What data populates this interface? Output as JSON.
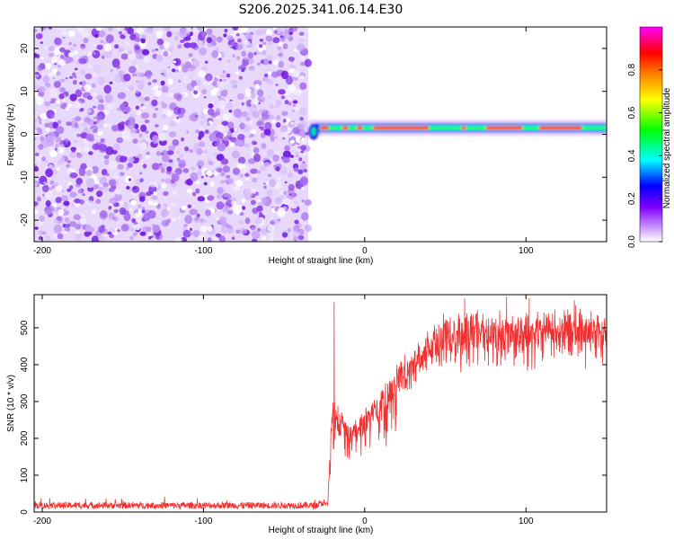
{
  "title": "S206.2025.341.06.14.E30",
  "chart_data": [
    {
      "type": "heatmap",
      "name": "spectrogram",
      "xlabel": "Height of straight line (km)",
      "ylabel": "Frequency (Hz)",
      "xlim": [
        -205,
        150
      ],
      "ylim": [
        -25,
        25
      ],
      "xticks": [
        -200,
        -100,
        0,
        100
      ],
      "yticks": [
        -20,
        -10,
        0,
        10,
        20
      ],
      "noise_region_x": [
        -205,
        -35
      ],
      "signal_region_x": [
        -35,
        150
      ],
      "signal_frequency_hz": 1.5,
      "colorbar": {
        "label": "Normalized spectral amplitude",
        "range": [
          0,
          1
        ],
        "ticks": [
          0.0,
          0.2,
          0.4,
          0.6,
          0.8
        ],
        "tick_labels": [
          "0.0",
          "0.2",
          "0.4",
          "0.6",
          "0.8"
        ],
        "colors": [
          "#ffffff",
          "#c080ff",
          "#8000ff",
          "#0000ff",
          "#00ffff",
          "#00ff00",
          "#ffff00",
          "#ff8000",
          "#ff0000",
          "#ff00ff"
        ]
      }
    },
    {
      "type": "line",
      "name": "snr",
      "xlabel": "Height of straight line (km)",
      "ylabel": "SNR (10 * v/v)",
      "xlim": [
        -205,
        150
      ],
      "ylim": [
        0,
        590
      ],
      "xticks": [
        -200,
        -100,
        0,
        100
      ],
      "yticks": [
        0,
        100,
        200,
        300,
        400,
        500
      ],
      "line_color": "#f03030",
      "profile": [
        {
          "x": -205,
          "y": 18
        },
        {
          "x": -30,
          "y": 18
        },
        {
          "x": -23,
          "y": 30
        },
        {
          "x": -20,
          "y": 300
        },
        {
          "x": -10,
          "y": 240
        },
        {
          "x": 0,
          "y": 270
        },
        {
          "x": 10,
          "y": 330
        },
        {
          "x": 20,
          "y": 380
        },
        {
          "x": 30,
          "y": 430
        },
        {
          "x": 40,
          "y": 480
        },
        {
          "x": 50,
          "y": 510
        },
        {
          "x": 70,
          "y": 520
        },
        {
          "x": 100,
          "y": 515
        },
        {
          "x": 130,
          "y": 530
        },
        {
          "x": 150,
          "y": 510
        }
      ],
      "peaks": [
        {
          "x": -19,
          "y": 570
        },
        {
          "x": 62,
          "y": 580
        },
        {
          "x": 88,
          "y": 585
        },
        {
          "x": 102,
          "y": 580
        },
        {
          "x": 130,
          "y": 575
        }
      ]
    }
  ]
}
